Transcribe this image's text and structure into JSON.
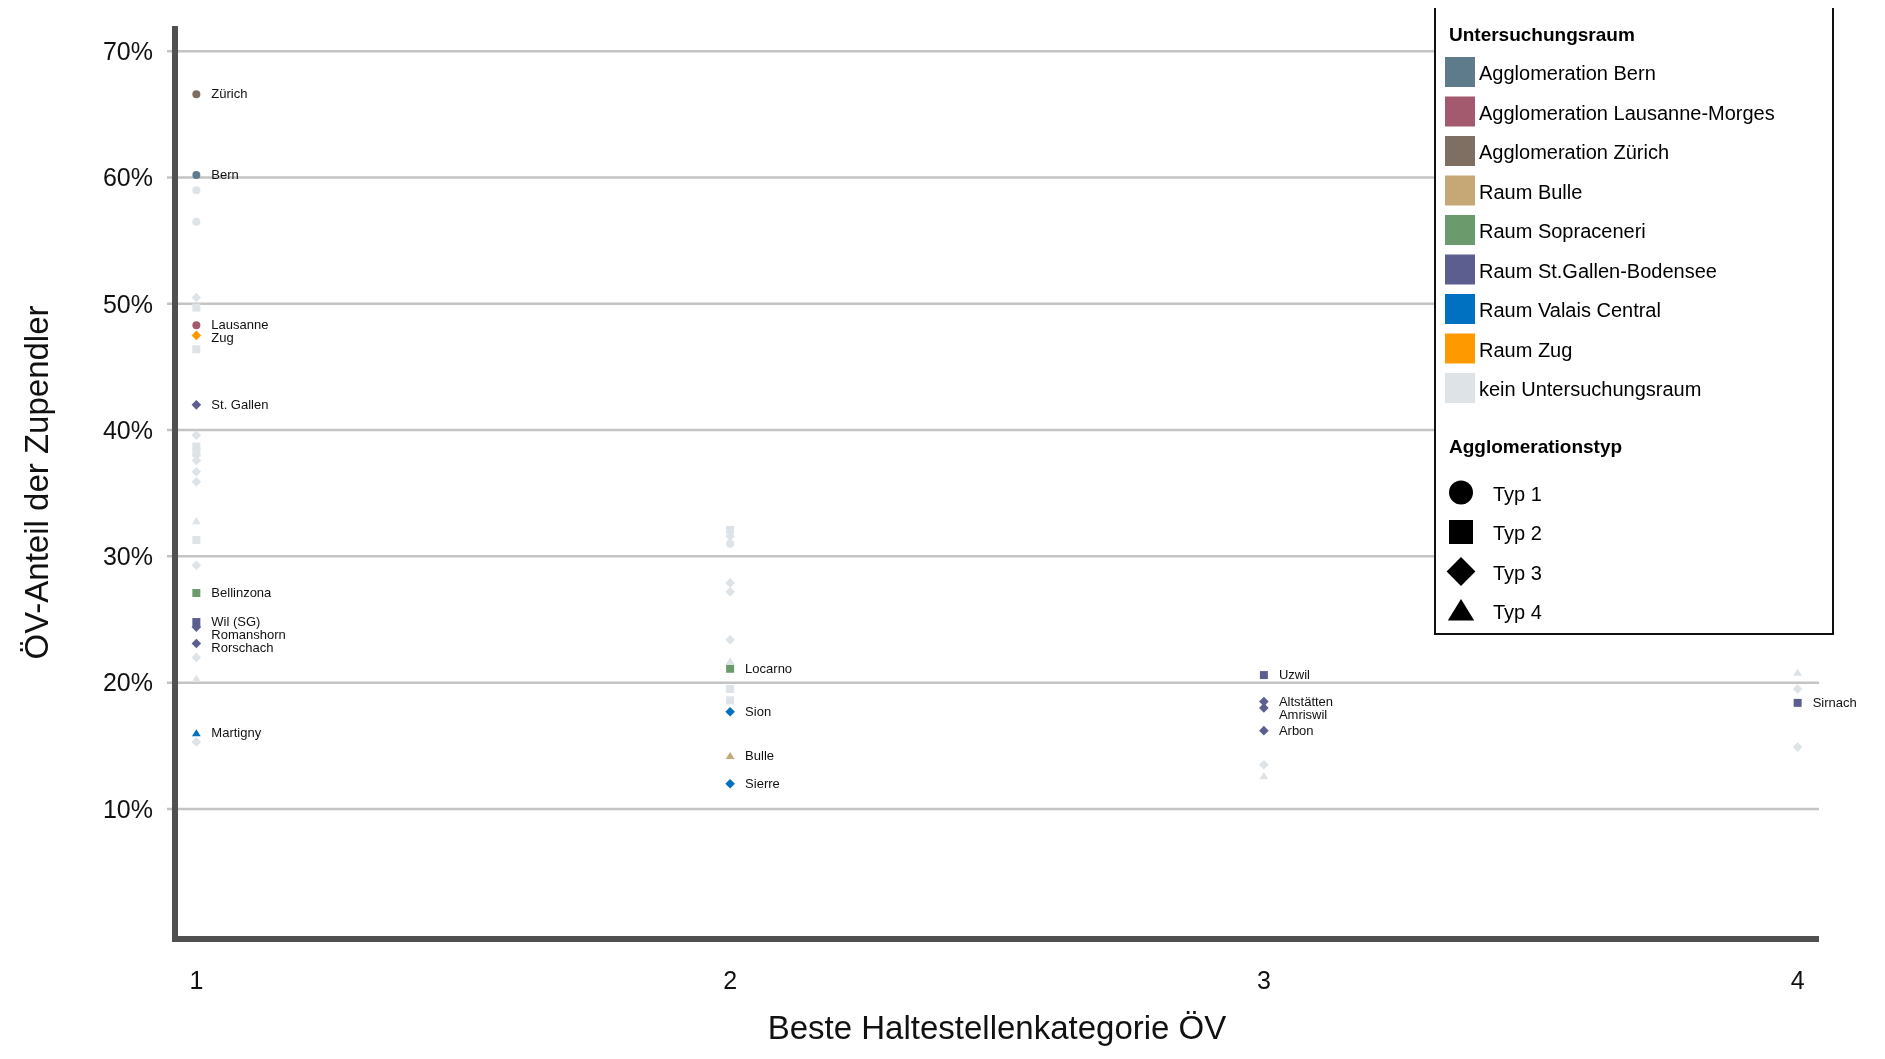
{
  "chart_data": {
    "type": "scatter",
    "xlabel": "Beste Haltestellenkategorie ÖV",
    "ylabel": "ÖV-Anteil der Zupendler",
    "xlim": [
      0.96,
      4.04
    ],
    "xticks": [
      1,
      2,
      3,
      4
    ],
    "ylim": [
      -0.3,
      72
    ],
    "yticks": [
      {
        "value": 10,
        "label": "10%"
      },
      {
        "value": 20,
        "label": "20%"
      },
      {
        "value": 30,
        "label": "30%"
      },
      {
        "value": 40,
        "label": "40%"
      },
      {
        "value": 50,
        "label": "50%"
      },
      {
        "value": 60,
        "label": "60%"
      },
      {
        "value": 70,
        "label": "70%"
      }
    ],
    "grid": "y",
    "legend": "top right",
    "legend_title": [
      "Untersuchungsraum",
      "Agglomerationstyp"
    ],
    "series": [
      {
        "name": "Agglomeration Bern",
        "color": "#5e7b8c",
        "marker": "circle",
        "x": [
          1
        ],
        "values": [
          60.2
        ]
      },
      {
        "name": "Agglomeration Lausanne-Morges",
        "color": "#a35a6e",
        "marker": "circle",
        "x": [
          1
        ],
        "values": [
          48.3
        ]
      },
      {
        "name": "Agglomeration Zürich",
        "color": "#7f6f62",
        "marker": "circle",
        "x": [
          1
        ],
        "values": [
          66.6
        ]
      },
      {
        "name": "Raum Bulle",
        "color": "#c6a776",
        "marker": "triangle",
        "x": [
          2
        ],
        "values": [
          14.2
        ]
      },
      {
        "name": "Raum Sopraceneri",
        "color": "#6b9a6c",
        "marker": "square",
        "x": [
          1,
          2
        ],
        "values": [
          27.1,
          21.1
        ]
      },
      {
        "name": "Raum St.Gallen-Bodensee",
        "color": "#5c5e8f",
        "marker": "diamond",
        "x": [
          1,
          1,
          1,
          3,
          3,
          3
        ],
        "values": [
          42.0,
          24.4,
          23.1,
          18.5,
          18.0,
          16.2
        ]
      },
      {
        "color": "#5c5e8f",
        "marker": "square",
        "x": [
          1,
          3,
          4
        ],
        "values": [
          24.8,
          20.6,
          18.4
        ]
      },
      {
        "name": "Raum Valais Central",
        "color": "#0070c0",
        "marker": "triangle",
        "x": [
          1
        ],
        "values": [
          16.0
        ]
      },
      {
        "color": "#0070c0",
        "marker": "diamond",
        "x": [
          2,
          2
        ],
        "values": [
          17.7,
          12.0
        ]
      },
      {
        "name": "Raum Zug",
        "color": "#ff9900",
        "marker": "diamond",
        "x": [
          1
        ],
        "values": [
          47.5
        ]
      },
      {
        "name": "kein Untersuchungsraum",
        "color": "#dde3e7",
        "marker": "circle",
        "x": [
          1,
          1,
          2
        ],
        "values": [
          59.0,
          56.5,
          31.0
        ]
      },
      {
        "color": "#dde3e7",
        "marker": "square",
        "x": [
          1,
          1,
          1,
          1,
          1,
          2,
          2,
          2
        ],
        "values": [
          49.7,
          46.4,
          38.7,
          38.2,
          31.3,
          32.1,
          19.5,
          18.6
        ]
      },
      {
        "color": "#dde3e7",
        "marker": "diamond",
        "x": [
          1,
          1,
          1,
          1,
          1,
          1,
          1,
          1,
          1,
          2,
          2,
          2,
          2,
          3,
          4,
          4
        ],
        "values": [
          50.5,
          39.6,
          38.0,
          37.6,
          36.7,
          35.9,
          29.3,
          22.0,
          15.3,
          31.6,
          27.9,
          27.2,
          23.4,
          13.5,
          19.5,
          14.9
        ]
      },
      {
        "color": "#dde3e7",
        "marker": "triangle",
        "x": [
          1,
          1,
          2,
          3,
          4
        ],
        "values": [
          32.8,
          20.3,
          21.7,
          12.6,
          20.8
        ]
      },
      {
        "name": "Typ 1",
        "color": "#000000",
        "marker": "circle"
      },
      {
        "name": "Typ 2",
        "color": "#000000",
        "marker": "square"
      },
      {
        "name": "Typ 3",
        "color": "#000000",
        "marker": "diamond"
      },
      {
        "name": "Typ 4",
        "color": "#000000",
        "marker": "triangle"
      }
    ],
    "annotations": [
      {
        "text": "Zürich",
        "x": 1,
        "y": 66.6
      },
      {
        "text": "Bern",
        "x": 1,
        "y": 60.2
      },
      {
        "text": "Lausanne",
        "x": 1,
        "y": 48.3
      },
      {
        "text": "Zug",
        "x": 1,
        "y": 47.5
      },
      {
        "text": "St. Gallen",
        "x": 1,
        "y": 42.0
      },
      {
        "text": "Bellinzona",
        "x": 1,
        "y": 27.1
      },
      {
        "text": "Wil (SG)",
        "x": 1,
        "y": 24.8
      },
      {
        "text": "Romanshorn",
        "x": 1,
        "y": 24.4
      },
      {
        "text": "Rorschach",
        "x": 1,
        "y": 23.1
      },
      {
        "text": "Martigny",
        "x": 1,
        "y": 16.0
      },
      {
        "text": "Locarno",
        "x": 2,
        "y": 21.1
      },
      {
        "text": "Sion",
        "x": 2,
        "y": 17.7
      },
      {
        "text": "Bulle",
        "x": 2,
        "y": 14.2
      },
      {
        "text": "Sierre",
        "x": 2,
        "y": 12.0
      },
      {
        "text": "Uzwil",
        "x": 3,
        "y": 20.6
      },
      {
        "text": "Altstätten",
        "x": 3,
        "y": 18.5
      },
      {
        "text": "Amriswil",
        "x": 3,
        "y": 18.0
      },
      {
        "text": "Arbon",
        "x": 3,
        "y": 16.2
      },
      {
        "text": "Sirnach",
        "x": 4,
        "y": 18.4
      }
    ]
  }
}
